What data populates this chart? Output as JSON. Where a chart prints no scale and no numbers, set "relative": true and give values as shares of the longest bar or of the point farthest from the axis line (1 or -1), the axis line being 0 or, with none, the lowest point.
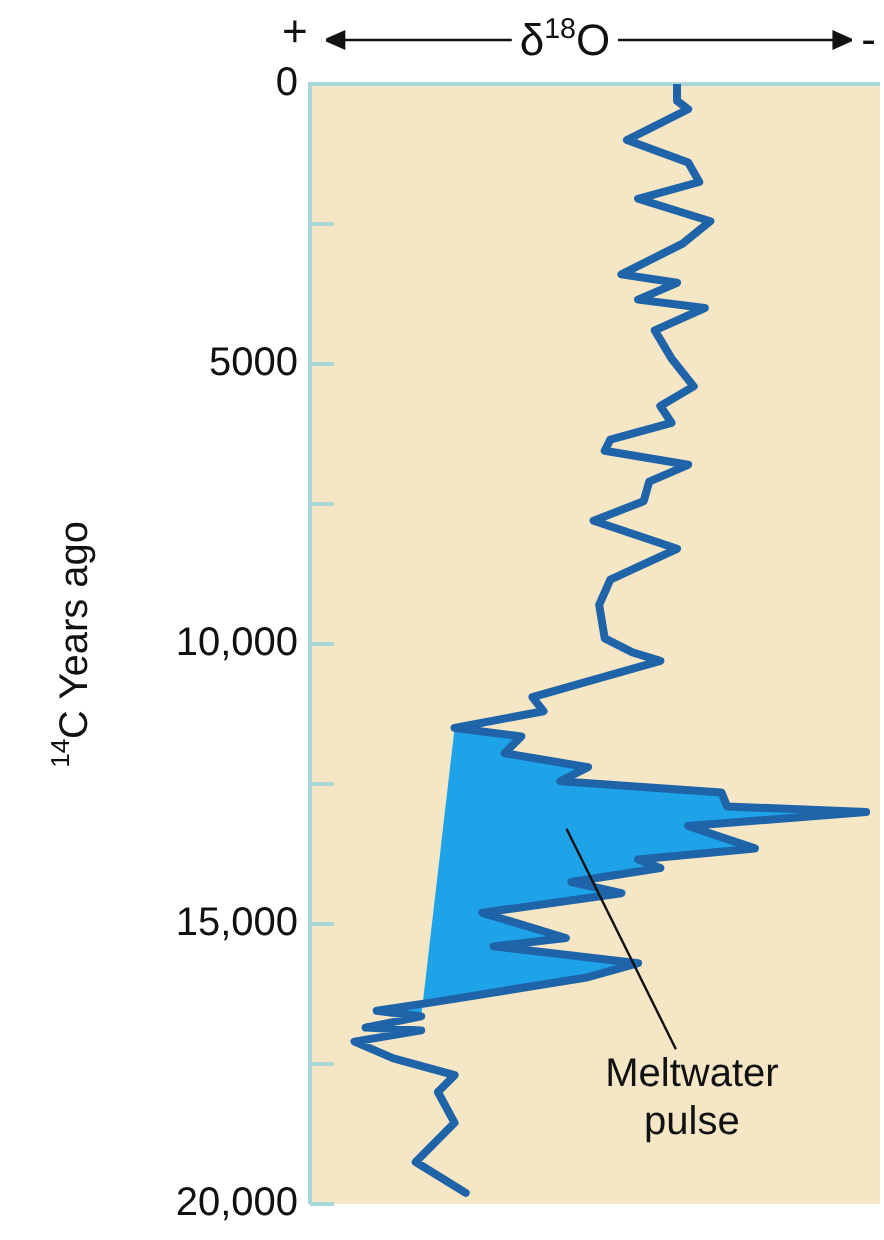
{
  "chart_data": {
    "type": "line",
    "relative": true,
    "orientation": "horizontal",
    "xlabel": "δ$^{18}$O",
    "ylabel": "$^{14}$C Years ago",
    "ylim": [
      20000,
      0
    ],
    "yticks": [
      0,
      {
        "value": 2500,
        "label": null
      },
      5000,
      {
        "value": 7500,
        "label": null
      },
      {
        "value": 10000,
        "label": "10,000"
      },
      {
        "value": 12500,
        "label": null
      },
      {
        "value": 15000,
        "label": "15,000"
      },
      {
        "value": 17500,
        "label": null
      },
      {
        "value": 20000,
        "label": "20,000"
      }
    ],
    "grid": false,
    "legend": false,
    "marker": "none",
    "line_style": "solid",
    "series": [
      {
        "type": "area",
        "color": "#1fa3e8",
        "values": [
          0.26,
          0.38,
          0.35,
          0.5,
          0.45,
          0.74,
          0.75,
          1,
          0.68,
          0.8,
          0.59,
          0.63,
          0.47,
          0.56,
          0.31,
          0.46,
          0.33,
          0.59,
          0.5,
          0.22,
          0.12,
          0.2
        ],
        "x": [
          11500,
          11650,
          11950,
          12200,
          12450,
          12650,
          12900,
          13000,
          13250,
          13650,
          13850,
          14000,
          14250,
          14450,
          14800,
          15250,
          15400,
          15700,
          15950,
          16400,
          16550,
          16650
        ]
      },
      {
        "color": "#1f64a8",
        "values": [
          0.66,
          0.66,
          0.68,
          0.57,
          0.68,
          0.7,
          0.59,
          0.72,
          0.67,
          0.56,
          0.66,
          0.59,
          0.71,
          0.62,
          0.65,
          0.69,
          0.63,
          0.65,
          0.54,
          0.53,
          0.68,
          0.61,
          0.6,
          0.51,
          0.66,
          0.54,
          0.52,
          0.53,
          0.58,
          0.63,
          0.4,
          0.42,
          0.26,
          0.38,
          0.35,
          0.5,
          0.45,
          0.74,
          0.75,
          1,
          0.68,
          0.8,
          0.59,
          0.63,
          0.47,
          0.56,
          0.31,
          0.46,
          0.33,
          0.59,
          0.5,
          0.22,
          0.12,
          0.2,
          0.1,
          0.2,
          0.08,
          0.15,
          0.26,
          0.23,
          0.26,
          0.19,
          0.28
        ],
        "x": [
          0,
          300,
          450,
          1000,
          1400,
          1750,
          2050,
          2450,
          2850,
          3400,
          3550,
          3850,
          4000,
          4400,
          4900,
          5400,
          5750,
          6050,
          6350,
          6550,
          6800,
          7100,
          7450,
          7800,
          8300,
          8850,
          9300,
          9900,
          10150,
          10300,
          10950,
          11200,
          11500,
          11650,
          11950,
          12200,
          12450,
          12650,
          12900,
          13000,
          13250,
          13650,
          13850,
          14000,
          14250,
          14450,
          14800,
          15250,
          15400,
          15700,
          15950,
          16400,
          16550,
          16650,
          16850,
          16900,
          17100,
          17400,
          17700,
          18000,
          18550,
          19250,
          19800
        ]
      }
    ],
    "annotations": [
      "+",
      "-",
      "Meltwater pulse"
    ]
  }
}
